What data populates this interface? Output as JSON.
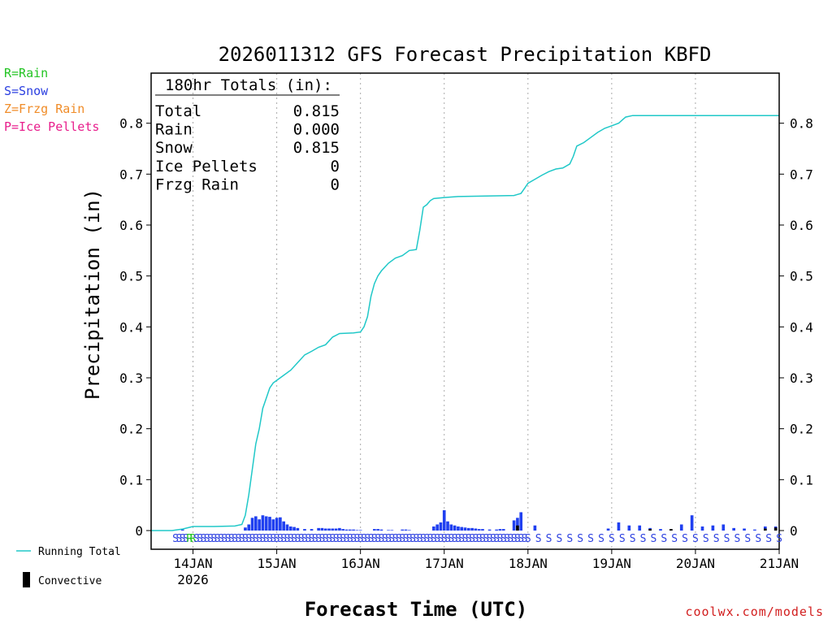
{
  "chart_data": {
    "type": "bar+line",
    "title": "2026011312 GFS Forecast Precipitation KBFD",
    "xlabel": "Forecast Time (UTC)",
    "ylabel": "Precipitation (in)",
    "ylim": [
      0,
      0.9
    ],
    "yticks": [
      0,
      0.1,
      0.2,
      0.3,
      0.4,
      0.5,
      0.6,
      0.7,
      0.8
    ],
    "ytick_labels": [
      "0",
      "0.1",
      "0.2",
      "0.3",
      "0.4",
      "0.5",
      "0.6",
      "0.7",
      "0.8"
    ],
    "xlim_hours": [
      0,
      180
    ],
    "xticks": [
      {
        "h": 12,
        "label": "14JAN",
        "sub": "2026"
      },
      {
        "h": 36,
        "label": "15JAN",
        "sub": ""
      },
      {
        "h": 60,
        "label": "16JAN",
        "sub": ""
      },
      {
        "h": 84,
        "label": "17JAN",
        "sub": ""
      },
      {
        "h": 108,
        "label": "18JAN",
        "sub": ""
      },
      {
        "h": 132,
        "label": "19JAN",
        "sub": ""
      },
      {
        "h": 156,
        "label": "20JAN",
        "sub": ""
      },
      {
        "h": 180,
        "label": "21JAN",
        "sub": ""
      }
    ],
    "running_total": {
      "name": "Running Total",
      "color": "#20c8c8",
      "points": [
        [
          0,
          0
        ],
        [
          6,
          0
        ],
        [
          9,
          0.003
        ],
        [
          12,
          0.008
        ],
        [
          18,
          0.008
        ],
        [
          24,
          0.009
        ],
        [
          26,
          0.012
        ],
        [
          27,
          0.03
        ],
        [
          28,
          0.07
        ],
        [
          29,
          0.12
        ],
        [
          30,
          0.17
        ],
        [
          31,
          0.2
        ],
        [
          32,
          0.24
        ],
        [
          33,
          0.26
        ],
        [
          34,
          0.28
        ],
        [
          35,
          0.29
        ],
        [
          36,
          0.295
        ],
        [
          38,
          0.305
        ],
        [
          40,
          0.315
        ],
        [
          42,
          0.33
        ],
        [
          44,
          0.345
        ],
        [
          46,
          0.352
        ],
        [
          48,
          0.36
        ],
        [
          50,
          0.365
        ],
        [
          52,
          0.38
        ],
        [
          54,
          0.387
        ],
        [
          58,
          0.388
        ],
        [
          60,
          0.39
        ],
        [
          61,
          0.4
        ],
        [
          62,
          0.42
        ],
        [
          63,
          0.46
        ],
        [
          64,
          0.485
        ],
        [
          65,
          0.5
        ],
        [
          66,
          0.51
        ],
        [
          68,
          0.525
        ],
        [
          70,
          0.535
        ],
        [
          72,
          0.54
        ],
        [
          74,
          0.55
        ],
        [
          76,
          0.552
        ],
        [
          77,
          0.59
        ],
        [
          78,
          0.635
        ],
        [
          79,
          0.64
        ],
        [
          80,
          0.648
        ],
        [
          81,
          0.652
        ],
        [
          84,
          0.654
        ],
        [
          88,
          0.656
        ],
        [
          96,
          0.657
        ],
        [
          104,
          0.658
        ],
        [
          106,
          0.662
        ],
        [
          107,
          0.672
        ],
        [
          108,
          0.682
        ],
        [
          110,
          0.69
        ],
        [
          112,
          0.698
        ],
        [
          114,
          0.705
        ],
        [
          116,
          0.71
        ],
        [
          118,
          0.712
        ],
        [
          120,
          0.72
        ],
        [
          121,
          0.735
        ],
        [
          122,
          0.755
        ],
        [
          124,
          0.762
        ],
        [
          126,
          0.772
        ],
        [
          128,
          0.782
        ],
        [
          130,
          0.79
        ],
        [
          132,
          0.795
        ],
        [
          134,
          0.8
        ],
        [
          136,
          0.812
        ],
        [
          138,
          0.815
        ],
        [
          180,
          0.815
        ]
      ]
    },
    "precip_bars": {
      "name": "Snow",
      "color": "#2040f0",
      "values": [
        [
          9,
          0.002
        ],
        [
          27,
          0.006
        ],
        [
          28,
          0.012
        ],
        [
          29,
          0.025
        ],
        [
          30,
          0.028
        ],
        [
          31,
          0.022
        ],
        [
          32,
          0.03
        ],
        [
          33,
          0.028
        ],
        [
          34,
          0.027
        ],
        [
          35,
          0.022
        ],
        [
          36,
          0.025
        ],
        [
          37,
          0.026
        ],
        [
          38,
          0.018
        ],
        [
          39,
          0.012
        ],
        [
          40,
          0.008
        ],
        [
          41,
          0.007
        ],
        [
          42,
          0.005
        ],
        [
          44,
          0.003
        ],
        [
          46,
          0.003
        ],
        [
          48,
          0.005
        ],
        [
          49,
          0.005
        ],
        [
          50,
          0.004
        ],
        [
          51,
          0.004
        ],
        [
          52,
          0.004
        ],
        [
          53,
          0.004
        ],
        [
          54,
          0.005
        ],
        [
          55,
          0.003
        ],
        [
          56,
          0.002
        ],
        [
          57,
          0.002
        ],
        [
          58,
          0.002
        ],
        [
          59,
          0.001
        ],
        [
          60,
          0.001
        ],
        [
          64,
          0.003
        ],
        [
          65,
          0.003
        ],
        [
          66,
          0.002
        ],
        [
          68,
          0.001
        ],
        [
          69,
          0.001
        ],
        [
          72,
          0.002
        ],
        [
          73,
          0.002
        ],
        [
          74,
          0.001
        ],
        [
          81,
          0.008
        ],
        [
          82,
          0.012
        ],
        [
          83,
          0.016
        ],
        [
          84,
          0.04
        ],
        [
          85,
          0.018
        ],
        [
          86,
          0.012
        ],
        [
          87,
          0.01
        ],
        [
          88,
          0.008
        ],
        [
          89,
          0.007
        ],
        [
          90,
          0.006
        ],
        [
          91,
          0.005
        ],
        [
          92,
          0.005
        ],
        [
          93,
          0.004
        ],
        [
          94,
          0.003
        ],
        [
          95,
          0.003
        ],
        [
          97,
          0.002
        ],
        [
          99,
          0.002
        ],
        [
          100,
          0.003
        ],
        [
          101,
          0.003
        ],
        [
          104,
          0.02
        ],
        [
          105,
          0.025
        ],
        [
          106,
          0.036
        ],
        [
          110,
          0.01
        ],
        [
          131,
          0.004
        ],
        [
          134,
          0.016
        ],
        [
          137,
          0.01
        ],
        [
          140,
          0.01
        ],
        [
          143,
          0.005
        ],
        [
          146,
          0.003
        ],
        [
          149,
          0.002
        ],
        [
          152,
          0.012
        ],
        [
          155,
          0.03
        ],
        [
          158,
          0.008
        ],
        [
          161,
          0.01
        ],
        [
          164,
          0.012
        ],
        [
          167,
          0.005
        ],
        [
          170,
          0.004
        ],
        [
          173,
          0.002
        ],
        [
          176,
          0.008
        ],
        [
          179,
          0.008
        ]
      ]
    },
    "convective_bars": {
      "name": "Convective",
      "color": "#000000",
      "values": [
        [
          105,
          0.01
        ],
        [
          143,
          0.003
        ],
        [
          149,
          0.003
        ],
        [
          176,
          0.004
        ],
        [
          179,
          0.006
        ]
      ]
    },
    "ptype_strip": {
      "dense_until_hour": 108,
      "green_r_hours": [
        11.5
      ],
      "sparse_from_hour": 111,
      "sparse_step": 3
    },
    "totals_box": {
      "header": "180hr Totals (in):",
      "rows": [
        {
          "label": "Total",
          "value": "0.815"
        },
        {
          "label": "Rain",
          "value": "0.000"
        },
        {
          "label": "Snow",
          "value": "0.815"
        },
        {
          "label": "Ice Pellets",
          "value": "0"
        },
        {
          "label": "Frzg Rain",
          "value": "0"
        }
      ]
    }
  },
  "legend": {
    "rain": {
      "text": "R=Rain",
      "color": "#22c422"
    },
    "snow": {
      "text": "S=Snow",
      "color": "#2b3fe0"
    },
    "frzg": {
      "text": "Z=Frzg Rain",
      "color": "#f08c28"
    },
    "ice": {
      "text": "P=Ice Pellets",
      "color": "#e81e8c"
    }
  },
  "bottom_legend": {
    "running_total": "Running Total",
    "convective": "Convective"
  },
  "credit": "coolwx.com/models"
}
